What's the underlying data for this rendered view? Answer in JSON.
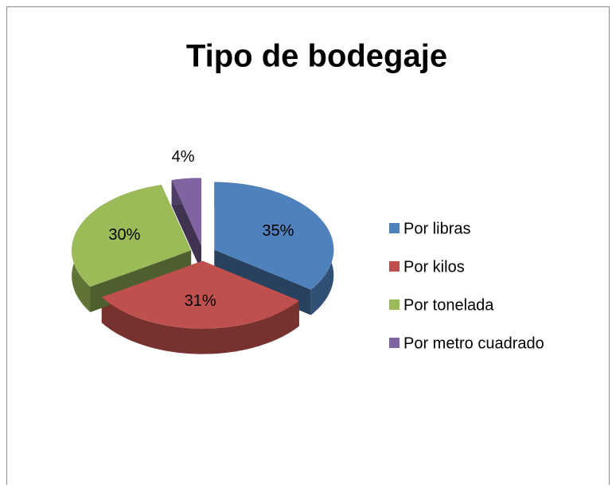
{
  "chart_data": {
    "type": "pie",
    "title": "Tipo de bodegaje",
    "categories": [
      "Por libras",
      "Por kilos",
      "Por tonelada",
      "Por metro cuadrado"
    ],
    "values": [
      35,
      31,
      30,
      4
    ],
    "value_labels": [
      "35%",
      "31%",
      "30%",
      "4%"
    ],
    "colors": [
      "#4f81bd",
      "#c0504d",
      "#9bbb59",
      "#8064a2"
    ],
    "legend": "right"
  }
}
